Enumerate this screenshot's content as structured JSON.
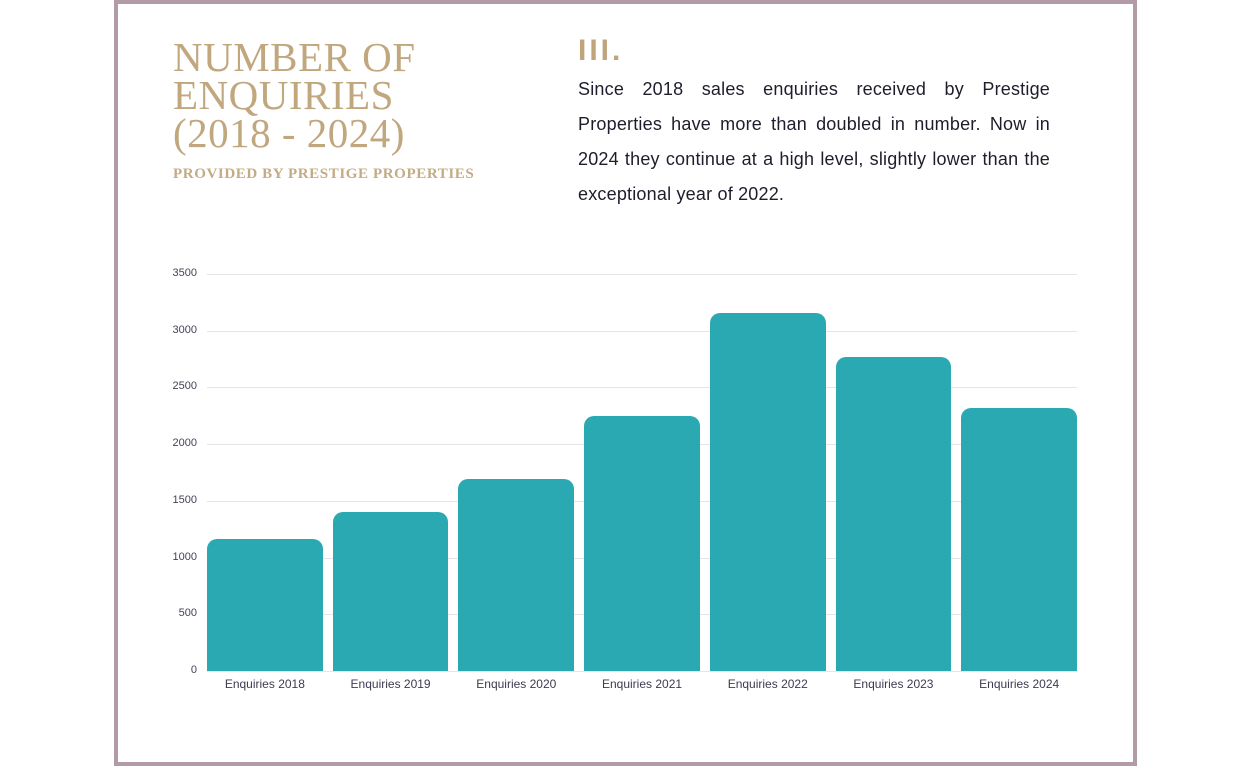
{
  "slide": {
    "title_lines": [
      "NUMBER OF",
      "ENQUIRIES",
      "(2018 - 2024)"
    ],
    "subtitle": "PROVIDED BY PRESTIGE PROPERTIES",
    "section_marker": "III.",
    "body_paragraph": "Since 2018 sales enquiries received by Prestige Properties have more than doubled in number. Now in 2024 they continue at a high level, slightly lower than the exceptional year of 2022."
  },
  "colors": {
    "accent_gold": "#c1a77e",
    "bar_teal": "#2ba9b3",
    "card_border_mauve": "#b29aa6",
    "axis_text": "#474055",
    "gridline": "#e5e4e6",
    "body_text": "#1f1d2b",
    "background": "#ffffff"
  },
  "chart_data": {
    "type": "bar",
    "title": "",
    "xlabel": "",
    "ylabel": "",
    "categories": [
      "Enquiries 2018",
      "Enquiries 2019",
      "Enquiries 2020",
      "Enquiries 2021",
      "Enquiries 2022",
      "Enquiries 2023",
      "Enquiries 2024"
    ],
    "values": [
      1160,
      1400,
      1690,
      2250,
      3160,
      2770,
      2320
    ],
    "ylim": [
      0,
      3500
    ],
    "yticks": [
      0,
      500,
      1000,
      1500,
      2000,
      2500,
      3000,
      3500
    ],
    "grid": true,
    "legend_position": "none",
    "bar_color": "#2ba9b3"
  }
}
